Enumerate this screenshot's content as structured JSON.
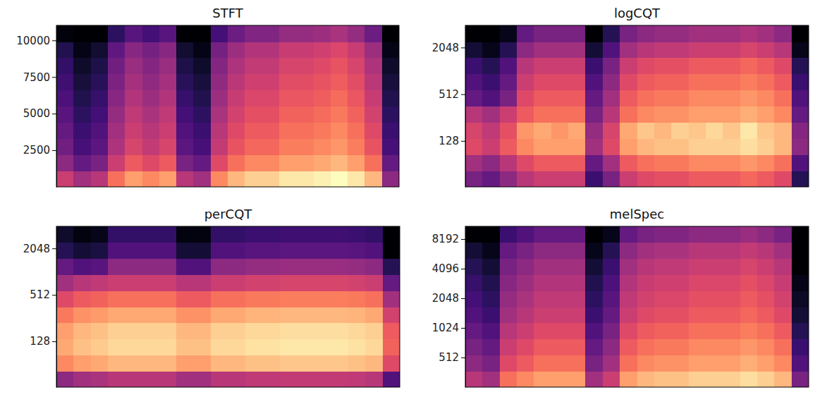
{
  "chart_data": [
    {
      "type": "heatmap",
      "title": "STFT",
      "ylim": [
        0,
        11025
      ],
      "yticks": [
        2500,
        5000,
        7500,
        10000
      ],
      "tick_labels": "y",
      "zlim": [
        0,
        100
      ],
      "cells": [
        [
          55,
          45,
          50,
          70,
          80,
          75,
          80,
          50,
          45,
          75,
          85,
          90,
          90,
          95,
          95,
          97,
          100,
          95,
          85,
          40
        ],
        [
          40,
          30,
          35,
          55,
          65,
          60,
          65,
          35,
          30,
          60,
          70,
          75,
          75,
          80,
          80,
          82,
          85,
          80,
          70,
          30
        ],
        [
          33,
          23,
          28,
          48,
          58,
          53,
          58,
          28,
          23,
          53,
          63,
          68,
          68,
          73,
          73,
          75,
          78,
          73,
          63,
          23
        ],
        [
          30,
          20,
          25,
          45,
          55,
          50,
          55,
          25,
          20,
          50,
          60,
          65,
          65,
          70,
          70,
          72,
          75,
          70,
          60,
          20
        ],
        [
          27,
          17,
          22,
          42,
          52,
          47,
          52,
          22,
          17,
          47,
          57,
          62,
          62,
          67,
          67,
          69,
          72,
          67,
          57,
          17
        ],
        [
          24,
          14,
          19,
          39,
          49,
          44,
          49,
          19,
          14,
          44,
          54,
          59,
          59,
          64,
          64,
          66,
          69,
          64,
          54,
          14
        ],
        [
          21,
          11,
          16,
          36,
          46,
          41,
          46,
          16,
          11,
          41,
          51,
          56,
          56,
          61,
          61,
          63,
          66,
          61,
          51,
          11
        ],
        [
          18,
          8,
          13,
          33,
          43,
          38,
          43,
          13,
          8,
          38,
          48,
          53,
          53,
          58,
          58,
          60,
          63,
          58,
          48,
          8
        ],
        [
          14,
          4,
          9,
          29,
          39,
          34,
          39,
          9,
          4,
          34,
          44,
          49,
          49,
          54,
          54,
          56,
          59,
          54,
          44,
          4
        ],
        [
          2,
          0,
          0,
          17,
          27,
          22,
          27,
          0,
          0,
          22,
          32,
          37,
          37,
          42,
          42,
          44,
          47,
          42,
          32,
          0
        ]
      ]
    },
    {
      "type": "heatmap",
      "title": "logCQT",
      "ylim": [
        32.7,
        3950
      ],
      "yticks": [
        128,
        512,
        2048
      ],
      "log": "y",
      "tick_labels": "y",
      "zlim": [
        0,
        100
      ],
      "cells": [
        [
          35,
          30,
          40,
          50,
          55,
          55,
          55,
          20,
          35,
          55,
          60,
          62,
          62,
          65,
          65,
          65,
          68,
          65,
          60,
          15
        ],
        [
          45,
          40,
          50,
          60,
          65,
          65,
          65,
          30,
          45,
          65,
          70,
          72,
          72,
          75,
          75,
          75,
          78,
          75,
          70,
          25
        ],
        [
          60,
          55,
          65,
          75,
          80,
          80,
          80,
          45,
          60,
          80,
          85,
          87,
          87,
          90,
          90,
          90,
          93,
          90,
          85,
          40
        ],
        [
          58,
          52,
          62,
          78,
          82,
          78,
          82,
          42,
          58,
          82,
          88,
          85,
          90,
          88,
          92,
          88,
          95,
          88,
          85,
          38
        ],
        [
          50,
          45,
          55,
          65,
          70,
          70,
          70,
          35,
          50,
          70,
          75,
          77,
          77,
          80,
          80,
          80,
          83,
          80,
          75,
          30
        ],
        [
          30,
          25,
          35,
          60,
          65,
          65,
          65,
          30,
          45,
          65,
          70,
          72,
          72,
          75,
          75,
          75,
          78,
          75,
          70,
          25
        ],
        [
          25,
          20,
          30,
          55,
          60,
          60,
          60,
          25,
          40,
          60,
          65,
          67,
          67,
          70,
          70,
          70,
          73,
          70,
          65,
          20
        ],
        [
          20,
          15,
          25,
          50,
          55,
          55,
          55,
          20,
          35,
          55,
          60,
          62,
          62,
          65,
          65,
          65,
          68,
          65,
          60,
          15
        ],
        [
          10,
          5,
          15,
          40,
          45,
          45,
          45,
          10,
          25,
          45,
          50,
          52,
          52,
          55,
          55,
          55,
          58,
          55,
          50,
          5
        ],
        [
          0,
          0,
          5,
          30,
          35,
          35,
          35,
          0,
          15,
          35,
          40,
          42,
          42,
          45,
          45,
          45,
          48,
          45,
          40,
          0
        ]
      ]
    },
    {
      "type": "heatmap",
      "title": "perCQT",
      "ylim": [
        32.7,
        3950
      ],
      "yticks": [
        128,
        512,
        2048
      ],
      "log": "y",
      "tick_labels": "y",
      "zlim": [
        0,
        100
      ],
      "cells": [
        [
          40,
          45,
          47,
          50,
          50,
          50,
          50,
          45,
          45,
          50,
          50,
          52,
          52,
          53,
          53,
          53,
          53,
          52,
          50,
          25
        ],
        [
          75,
          80,
          82,
          85,
          85,
          85,
          85,
          80,
          80,
          85,
          85,
          87,
          87,
          88,
          88,
          88,
          88,
          87,
          85,
          60
        ],
        [
          82,
          87,
          89,
          92,
          92,
          92,
          92,
          87,
          87,
          92,
          92,
          94,
          94,
          95,
          95,
          95,
          95,
          94,
          92,
          67
        ],
        [
          80,
          85,
          87,
          90,
          90,
          90,
          90,
          85,
          85,
          90,
          90,
          92,
          92,
          93,
          93,
          93,
          93,
          92,
          90,
          65
        ],
        [
          72,
          77,
          79,
          82,
          82,
          82,
          82,
          77,
          77,
          82,
          82,
          84,
          84,
          85,
          85,
          85,
          85,
          84,
          82,
          57
        ],
        [
          60,
          65,
          67,
          70,
          70,
          70,
          70,
          65,
          65,
          70,
          70,
          72,
          72,
          73,
          73,
          73,
          73,
          72,
          70,
          45
        ],
        [
          45,
          50,
          52,
          55,
          55,
          55,
          55,
          50,
          50,
          55,
          55,
          57,
          57,
          58,
          58,
          58,
          58,
          57,
          55,
          30
        ],
        [
          30,
          25,
          27,
          40,
          40,
          40,
          40,
          25,
          25,
          40,
          40,
          42,
          42,
          43,
          43,
          43,
          43,
          42,
          40,
          15
        ],
        [
          15,
          10,
          12,
          25,
          25,
          25,
          25,
          10,
          10,
          25,
          25,
          27,
          27,
          28,
          28,
          28,
          28,
          27,
          25,
          0
        ],
        [
          8,
          3,
          5,
          18,
          18,
          18,
          18,
          3,
          3,
          18,
          18,
          20,
          20,
          21,
          21,
          21,
          21,
          20,
          18,
          0
        ]
      ]
    },
    {
      "type": "heatmap",
      "title": "melSpec",
      "ylim": [
        256,
        11025
      ],
      "yticks": [
        512,
        1024,
        2048,
        4096,
        8192
      ],
      "log": "y",
      "tick_labels": "y",
      "zlim": [
        0,
        100
      ],
      "cells": [
        [
          50,
          45,
          70,
          75,
          80,
          80,
          80,
          45,
          55,
          80,
          85,
          87,
          87,
          90,
          90,
          90,
          93,
          90,
          85,
          35
        ],
        [
          40,
          35,
          60,
          65,
          70,
          70,
          70,
          35,
          45,
          70,
          75,
          77,
          77,
          80,
          80,
          80,
          83,
          80,
          75,
          25
        ],
        [
          35,
          30,
          55,
          60,
          65,
          65,
          65,
          30,
          40,
          65,
          70,
          72,
          72,
          75,
          75,
          75,
          78,
          75,
          70,
          20
        ],
        [
          30,
          25,
          50,
          55,
          60,
          60,
          60,
          25,
          35,
          60,
          65,
          67,
          67,
          70,
          70,
          70,
          73,
          70,
          65,
          15
        ],
        [
          25,
          20,
          45,
          50,
          55,
          55,
          55,
          20,
          30,
          55,
          60,
          62,
          62,
          65,
          65,
          65,
          68,
          65,
          60,
          10
        ],
        [
          22,
          17,
          42,
          47,
          52,
          52,
          52,
          17,
          27,
          52,
          57,
          59,
          59,
          62,
          62,
          62,
          65,
          62,
          57,
          7
        ],
        [
          19,
          14,
          39,
          44,
          49,
          49,
          49,
          14,
          24,
          49,
          54,
          56,
          56,
          59,
          59,
          59,
          62,
          59,
          54,
          4
        ],
        [
          15,
          10,
          35,
          40,
          45,
          45,
          45,
          10,
          20,
          45,
          50,
          52,
          52,
          55,
          55,
          55,
          58,
          55,
          50,
          0
        ],
        [
          10,
          5,
          30,
          35,
          40,
          40,
          40,
          5,
          15,
          40,
          45,
          47,
          47,
          50,
          50,
          50,
          53,
          50,
          45,
          0
        ],
        [
          0,
          0,
          20,
          25,
          30,
          30,
          30,
          0,
          5,
          30,
          35,
          37,
          37,
          40,
          40,
          40,
          43,
          40,
          35,
          0
        ]
      ]
    }
  ]
}
